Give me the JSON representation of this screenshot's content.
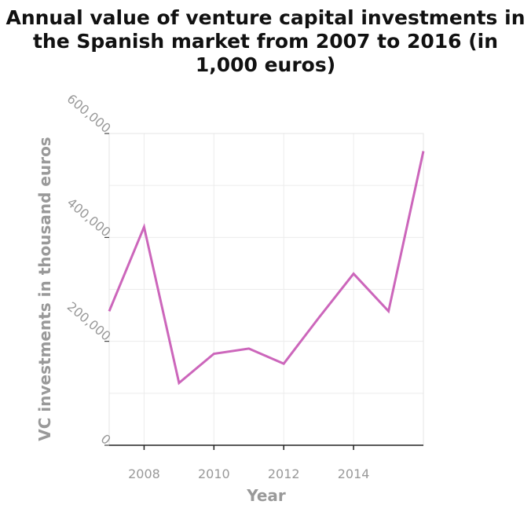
{
  "chart_data": {
    "type": "line",
    "title": "Annual value of venture capital investments in the Spanish market from 2007 to 2016 (in 1,000 euros)",
    "xlabel": "Year",
    "ylabel": "VC investments in thousand euros",
    "xlim": [
      2007,
      2016
    ],
    "ylim": [
      0,
      600000
    ],
    "x_ticks": [
      2008,
      2010,
      2012,
      2014
    ],
    "x_tick_labels": [
      "2008",
      "2010",
      "2012",
      "2014"
    ],
    "y_ticks": [
      0,
      200000,
      400000,
      600000
    ],
    "y_tick_labels": [
      "0",
      "200,000",
      "400,000",
      "600,000"
    ],
    "grid": true,
    "legend": "none",
    "series": [
      {
        "color": "#cc66bb",
        "x": [
          2007,
          2008,
          2009,
          2010,
          2011,
          2012,
          2013,
          2014,
          2015,
          2016
        ],
        "y": [
          258000,
          420000,
          120000,
          176000,
          186000,
          157000,
          245000,
          330000,
          258000,
          566000
        ]
      }
    ]
  }
}
